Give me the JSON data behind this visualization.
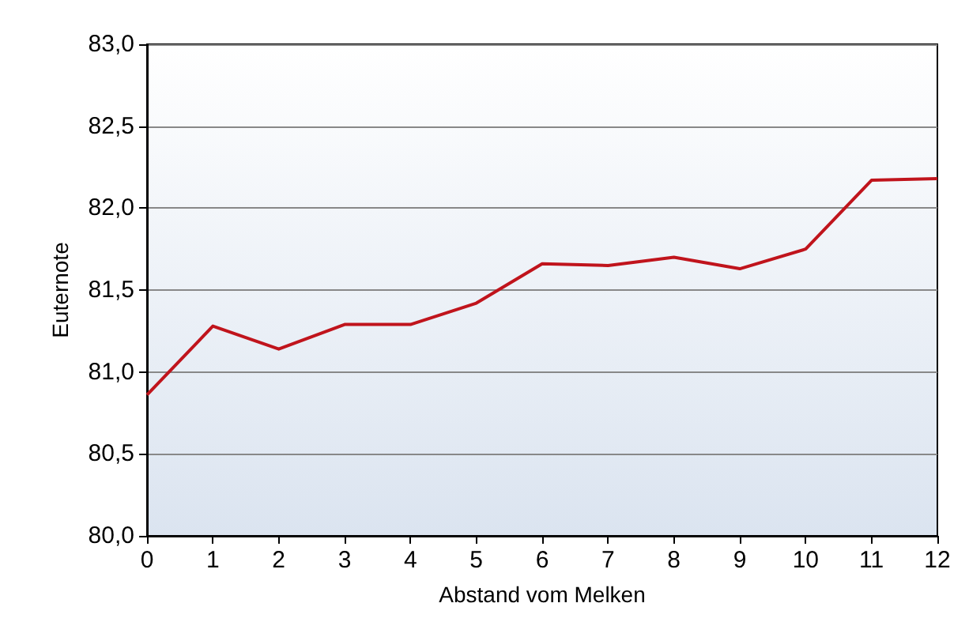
{
  "chart_data": {
    "type": "line",
    "xlabel": "Abstand vom Melken",
    "ylabel": "Euternote",
    "x": [
      0,
      1,
      2,
      3,
      4,
      5,
      6,
      7,
      8,
      9,
      10,
      11,
      12
    ],
    "series": [
      {
        "color": "#c0141c",
        "values": [
          80.86,
          81.28,
          81.14,
          81.29,
          81.29,
          81.42,
          81.66,
          81.65,
          81.7,
          81.63,
          81.75,
          82.17,
          82.18
        ]
      }
    ],
    "xlim": [
      0,
      12
    ],
    "xticks": [
      0,
      1,
      2,
      3,
      4,
      5,
      6,
      7,
      8,
      9,
      10,
      11,
      12
    ],
    "ylim": [
      80,
      83
    ],
    "yticks": [
      {
        "value": 80,
        "label": "80,0"
      },
      {
        "value": 80.5,
        "label": "80,5"
      },
      {
        "value": 81,
        "label": "81,0"
      },
      {
        "value": 81.5,
        "label": "81,5"
      },
      {
        "value": 82,
        "label": "82,0"
      },
      {
        "value": 82.5,
        "label": "82,5"
      },
      {
        "value": 83,
        "label": "83,0"
      }
    ],
    "grid": "y",
    "marker": "none",
    "line_style": "solid"
  }
}
